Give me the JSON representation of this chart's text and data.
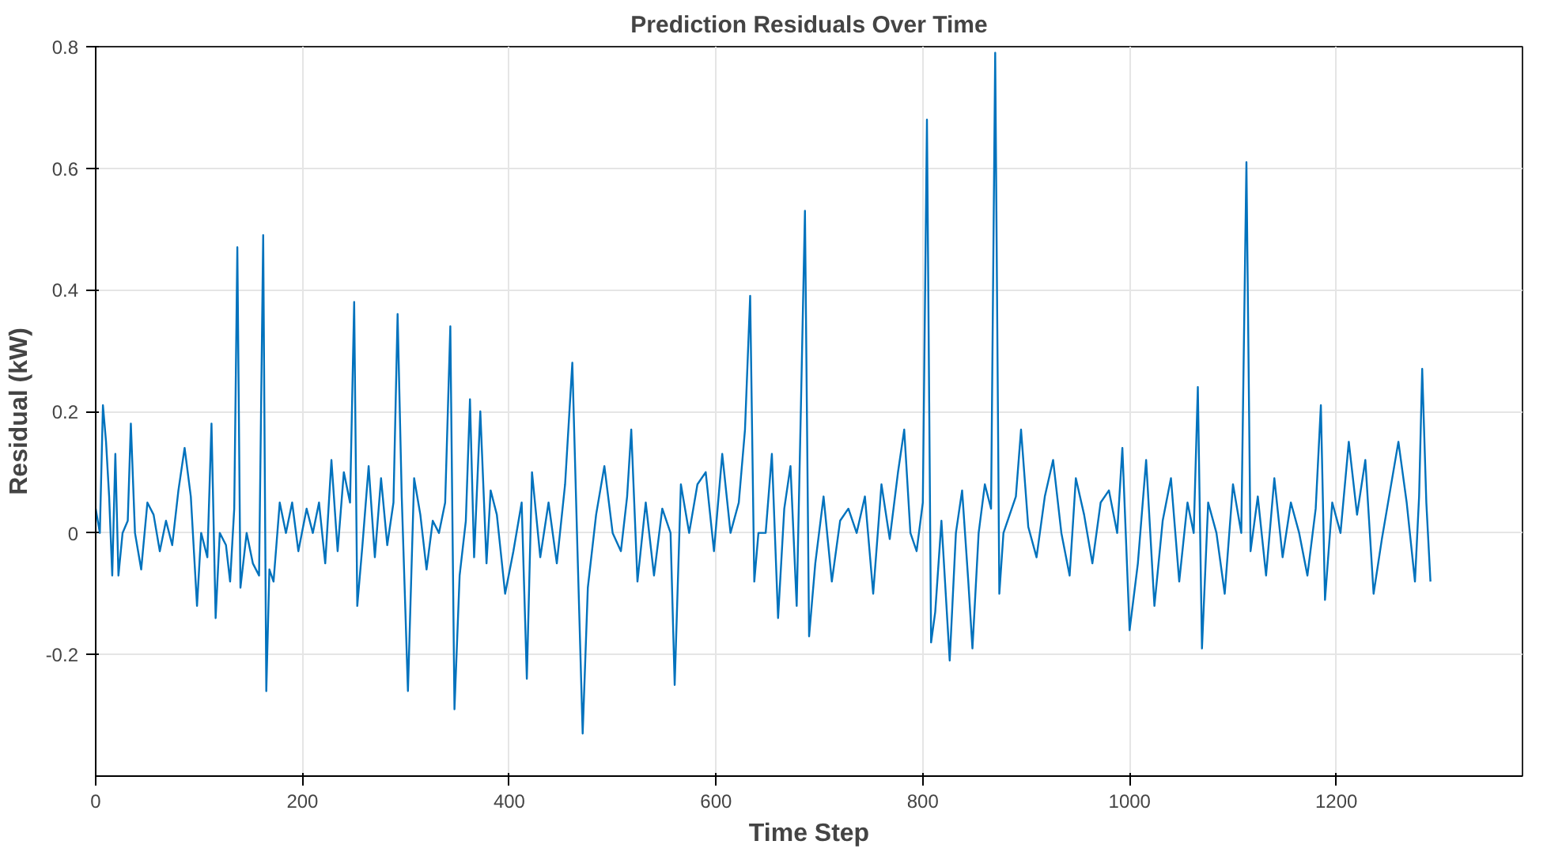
{
  "chart_data": {
    "type": "line",
    "title": "Prediction Residuals Over Time",
    "xlabel": "Time Step",
    "ylabel": "Residual (kW)",
    "xlim": [
      0,
      1380
    ],
    "ylim": [
      -0.4,
      0.8
    ],
    "xticks": [
      0,
      200,
      400,
      600,
      800,
      1000,
      1200
    ],
    "yticks": [
      {
        "value": -0.2,
        "label": "-0.2"
      },
      0,
      0.2,
      0.4,
      0.6,
      0.8
    ],
    "grid": true,
    "line_style": "solid",
    "marker": "none",
    "series": [
      {
        "color": "#0072bd",
        "x": [
          0,
          4,
          7,
          10,
          13,
          16,
          19,
          22,
          26,
          31,
          34,
          38,
          44,
          50,
          56,
          62,
          68,
          74,
          80,
          86,
          92,
          98,
          102,
          108,
          112,
          116,
          120,
          126,
          130,
          134,
          137,
          140,
          146,
          152,
          158,
          162,
          165,
          168,
          172,
          178,
          184,
          190,
          196,
          204,
          210,
          216,
          222,
          228,
          234,
          240,
          246,
          250,
          253,
          258,
          264,
          270,
          276,
          282,
          288,
          292,
          296,
          302,
          308,
          314,
          320,
          326,
          332,
          338,
          343,
          347,
          352,
          358,
          362,
          366,
          372,
          378,
          382,
          388,
          396,
          404,
          412,
          417,
          422,
          430,
          438,
          446,
          454,
          461,
          466,
          471,
          476,
          484,
          492,
          500,
          508,
          514,
          518,
          524,
          532,
          540,
          548,
          556,
          560,
          566,
          574,
          582,
          590,
          598,
          606,
          614,
          622,
          628,
          633,
          637,
          641,
          648,
          654,
          660,
          666,
          672,
          678,
          682,
          686,
          690,
          696,
          704,
          712,
          720,
          728,
          736,
          744,
          752,
          760,
          768,
          776,
          782,
          788,
          794,
          800,
          804,
          808,
          812,
          818,
          826,
          832,
          838,
          844,
          848,
          854,
          860,
          866,
          870,
          874,
          878,
          884,
          890,
          895,
          902,
          910,
          918,
          926,
          934,
          942,
          948,
          956,
          964,
          972,
          980,
          988,
          993,
          1000,
          1008,
          1016,
          1024,
          1032,
          1040,
          1048,
          1056,
          1062,
          1066,
          1070,
          1076,
          1084,
          1092,
          1100,
          1108,
          1113,
          1117,
          1124,
          1132,
          1140,
          1148,
          1156,
          1164,
          1172,
          1180,
          1185,
          1189,
          1196,
          1204,
          1212,
          1220,
          1228,
          1236,
          1244,
          1252,
          1260,
          1268,
          1276,
          1280,
          1283,
          1287,
          1291
        ],
        "values": [
          0.04,
          0.0,
          0.21,
          0.15,
          0.06,
          -0.07,
          0.13,
          -0.07,
          0.0,
          0.02,
          0.18,
          0.0,
          -0.06,
          0.05,
          0.03,
          -0.03,
          0.02,
          -0.02,
          0.07,
          0.14,
          0.06,
          -0.12,
          0.0,
          -0.04,
          0.18,
          -0.14,
          0.0,
          -0.02,
          -0.08,
          0.04,
          0.47,
          -0.09,
          0.0,
          -0.05,
          -0.07,
          0.49,
          -0.26,
          -0.06,
          -0.08,
          0.05,
          0.0,
          0.05,
          -0.03,
          0.04,
          0.0,
          0.05,
          -0.05,
          0.12,
          -0.03,
          0.1,
          0.05,
          0.38,
          -0.12,
          -0.02,
          0.11,
          -0.04,
          0.09,
          -0.02,
          0.05,
          0.36,
          0.06,
          -0.26,
          0.09,
          0.03,
          -0.06,
          0.02,
          0.0,
          0.05,
          0.34,
          -0.29,
          -0.07,
          0.02,
          0.22,
          -0.04,
          0.2,
          -0.05,
          0.07,
          0.03,
          -0.1,
          -0.03,
          0.05,
          -0.24,
          0.1,
          -0.04,
          0.05,
          -0.05,
          0.08,
          0.28,
          -0.03,
          -0.33,
          -0.09,
          0.03,
          0.11,
          0.0,
          -0.03,
          0.06,
          0.17,
          -0.08,
          0.05,
          -0.07,
          0.04,
          0.0,
          -0.25,
          0.08,
          0.0,
          0.08,
          0.1,
          -0.03,
          0.13,
          0.0,
          0.05,
          0.17,
          0.39,
          -0.08,
          0.0,
          0.0,
          0.13,
          -0.14,
          0.04,
          0.11,
          -0.12,
          0.2,
          0.53,
          -0.17,
          -0.05,
          0.06,
          -0.08,
          0.02,
          0.04,
          0.0,
          0.06,
          -0.1,
          0.08,
          -0.01,
          0.1,
          0.17,
          0.0,
          -0.03,
          0.05,
          0.68,
          -0.18,
          -0.13,
          0.02,
          -0.21,
          0.0,
          0.07,
          -0.08,
          -0.19,
          0.0,
          0.08,
          0.04,
          0.79,
          -0.1,
          0.0,
          0.03,
          0.06,
          0.17,
          0.01,
          -0.04,
          0.06,
          0.12,
          0.0,
          -0.07,
          0.09,
          0.03,
          -0.05,
          0.05,
          0.07,
          0.0,
          0.14,
          -0.16,
          -0.05,
          0.12,
          -0.12,
          0.02,
          0.09,
          -0.08,
          0.05,
          0.0,
          0.24,
          -0.19,
          0.05,
          0.0,
          -0.1,
          0.08,
          0.0,
          0.61,
          -0.03,
          0.06,
          -0.07,
          0.09,
          -0.04,
          0.05,
          0.0,
          -0.07,
          0.04,
          0.21,
          -0.11,
          0.05,
          0.0,
          0.15,
          0.03,
          0.12,
          -0.1,
          -0.01,
          0.07,
          0.15,
          0.05,
          -0.08,
          0.06,
          0.27,
          0.05,
          -0.08
        ]
      }
    ]
  }
}
